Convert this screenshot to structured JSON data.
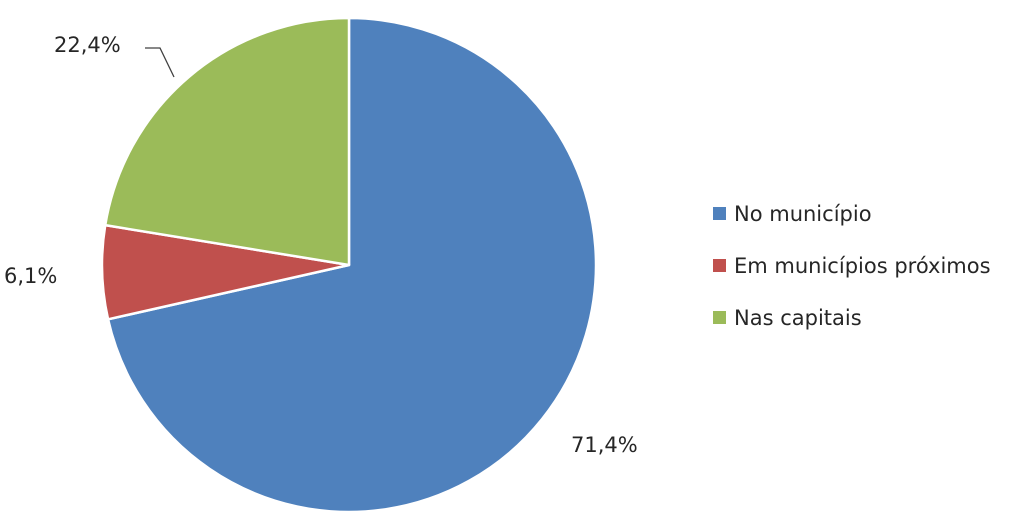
{
  "chart_data": {
    "type": "pie",
    "categories": [
      "No município",
      "Em municípios próximos",
      "Nas capitais"
    ],
    "values": [
      71.4,
      6.1,
      22.4
    ],
    "labels": [
      "71,4%",
      "6,1%",
      "22,4%"
    ],
    "colors": [
      "#4f81bd",
      "#c0504d",
      "#9bbb59"
    ],
    "start_angle_deg": 0,
    "direction": "clockwise",
    "legend_position": "right"
  }
}
